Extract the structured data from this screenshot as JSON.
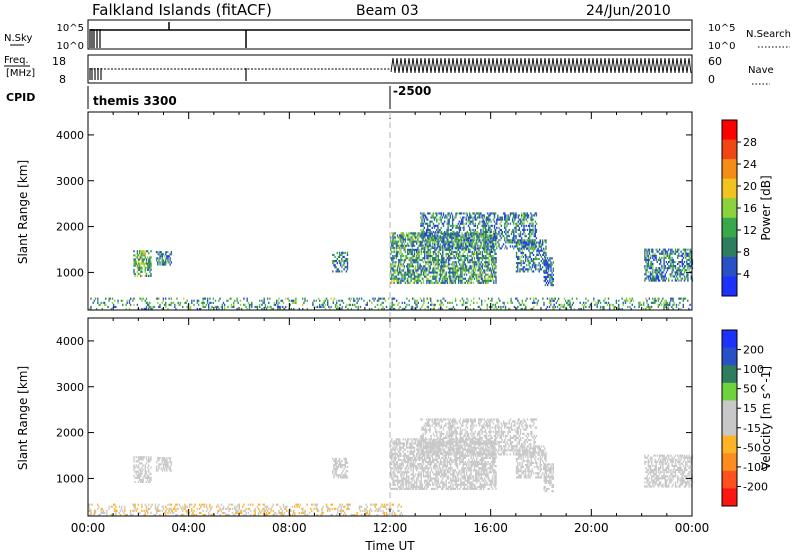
{
  "header": {
    "station": "Falkland Islands (fitACF)",
    "beam": "Beam 03",
    "date": "24/Jun/2010"
  },
  "summary_panels": {
    "nsky_label": "N.Sky",
    "nsky_ticks": [
      "10^5",
      "10^0"
    ],
    "nsearch_label": "N.Search",
    "nsearch_ticks": [
      "10^5",
      "10^0"
    ],
    "freq_label": "Freq.",
    "freq_unit": "[MHz]",
    "freq_ticks": [
      "18",
      "8"
    ],
    "nave_label": "Nave",
    "nave_ticks": [
      "60",
      "0"
    ],
    "cpid_label": "CPID",
    "cpid_segments": [
      {
        "start_hour": 0,
        "label": "themis 3300"
      },
      {
        "start_hour": 12,
        "label": "-2500"
      }
    ]
  },
  "colors": {
    "power_scale": [
      "#1e32ff",
      "#2a50c8",
      "#2e7d5e",
      "#38a84a",
      "#8cd23c",
      "#f0c31e",
      "#f58c14",
      "#f04614",
      "#ff0000"
    ],
    "velocity_scale": [
      "#ff1414",
      "#ff501e",
      "#ff8c1e",
      "#ffb428",
      "#c8c8c8",
      "#c8c8c8",
      "#6ed23c",
      "#2e7d5e",
      "#2a50c8",
      "#1e32ff"
    ],
    "ground_scatter": "#c8c8c8",
    "axis": "#000000",
    "marker_line": "#b4b4b4"
  },
  "chart_data": [
    {
      "type": "heatmap",
      "name": "power",
      "xlabel": "Time UT",
      "ylabel": "Slant Range [km]",
      "colorbar_label": "Power [dB]",
      "colorbar_ticks": [
        "28",
        "24",
        "20",
        "16",
        "12",
        "8",
        "4"
      ],
      "colorbar_range": [
        0,
        30
      ],
      "x_ticks": [
        "00:00",
        "04:00",
        "08:00",
        "12:00",
        "16:00",
        "20:00",
        "00:00"
      ],
      "xlim_hours": [
        0,
        24
      ],
      "y_ticks": [
        "4000",
        "3000",
        "2000",
        "1000"
      ],
      "ylim_km": [
        180,
        4500
      ],
      "regions": [
        {
          "t0": 0.0,
          "t1": 24.0,
          "r0": 180,
          "r1": 420,
          "density": 0.25,
          "value_mean": 10
        },
        {
          "t0": 1.8,
          "t1": 2.5,
          "r0": 900,
          "r1": 1450,
          "density": 0.55,
          "value_mean": 12
        },
        {
          "t0": 2.7,
          "t1": 3.3,
          "r0": 1150,
          "r1": 1450,
          "density": 0.5,
          "value_mean": 8
        },
        {
          "t0": 9.7,
          "t1": 10.3,
          "r0": 1000,
          "r1": 1450,
          "density": 0.5,
          "value_mean": 8
        },
        {
          "t0": 12.0,
          "t1": 16.2,
          "r0": 750,
          "r1": 1850,
          "density": 0.6,
          "value_mean": 10
        },
        {
          "t0": 13.2,
          "t1": 17.8,
          "r0": 1500,
          "r1": 2300,
          "density": 0.45,
          "value_mean": 8
        },
        {
          "t0": 17.0,
          "t1": 18.2,
          "r0": 1000,
          "r1": 1700,
          "density": 0.5,
          "value_mean": 8
        },
        {
          "t0": 18.1,
          "t1": 18.5,
          "r0": 700,
          "r1": 1300,
          "density": 0.6,
          "value_mean": 6
        },
        {
          "t0": 22.1,
          "t1": 24.0,
          "r0": 800,
          "r1": 1500,
          "density": 0.55,
          "value_mean": 8
        }
      ]
    },
    {
      "type": "heatmap",
      "name": "velocity",
      "xlabel": "Time UT",
      "ylabel": "Slant Range [km]",
      "colorbar_label": "Velocity [m s^-1]",
      "colorbar_ticks": [
        "200",
        "100",
        "50",
        "15",
        "-15",
        "-50",
        "-100",
        "-200"
      ],
      "colorbar_range": [
        -250,
        250
      ],
      "x_ticks": [
        "00:00",
        "04:00",
        "08:00",
        "12:00",
        "16:00",
        "20:00",
        "00:00"
      ],
      "xlim_hours": [
        0,
        24
      ],
      "y_ticks": [
        "4000",
        "3000",
        "2000",
        "1000"
      ],
      "ylim_km": [
        180,
        4500
      ],
      "regions": [
        {
          "t0": 0.0,
          "t1": 12.5,
          "r0": 180,
          "r1": 420,
          "density": 0.3,
          "value_mean": -40
        },
        {
          "t0": 1.8,
          "t1": 2.5,
          "r0": 900,
          "r1": 1450,
          "density": 0.5,
          "value_mean": 0
        },
        {
          "t0": 2.7,
          "t1": 3.3,
          "r0": 1150,
          "r1": 1450,
          "density": 0.5,
          "value_mean": 0
        },
        {
          "t0": 9.7,
          "t1": 10.3,
          "r0": 1000,
          "r1": 1450,
          "density": 0.5,
          "value_mean": 0
        },
        {
          "t0": 12.0,
          "t1": 16.2,
          "r0": 750,
          "r1": 1850,
          "density": 0.6,
          "value_mean": 0
        },
        {
          "t0": 13.2,
          "t1": 17.8,
          "r0": 1500,
          "r1": 2300,
          "density": 0.45,
          "value_mean": 0
        },
        {
          "t0": 17.0,
          "t1": 18.2,
          "r0": 1000,
          "r1": 1700,
          "density": 0.5,
          "value_mean": 0
        },
        {
          "t0": 18.1,
          "t1": 18.5,
          "r0": 700,
          "r1": 1300,
          "density": 0.6,
          "value_mean": 0
        },
        {
          "t0": 22.1,
          "t1": 24.0,
          "r0": 800,
          "r1": 1500,
          "density": 0.55,
          "value_mean": 0
        }
      ]
    }
  ]
}
